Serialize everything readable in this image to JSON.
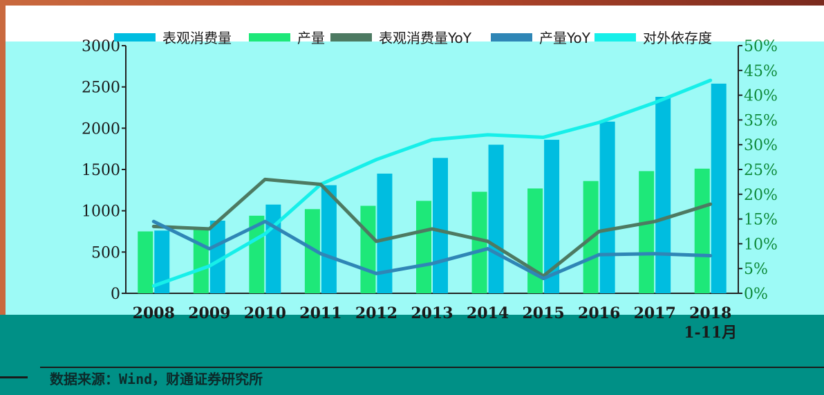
{
  "source_note": "数据来源：Wind，财通证券研究所",
  "colors": {
    "consumption_bar": "#00bde0",
    "production_bar": "#1ee879",
    "consumption_yoy_line": "#4d7a62",
    "production_yoy_line": "#2f86b6",
    "dependence_line": "#17efe9",
    "left_axis_text": "#1a1a1a",
    "right_axis_text": "#0e8a3a"
  },
  "chart_data": {
    "type": "bar",
    "categories": [
      "2008",
      "2009",
      "2010",
      "2011",
      "2012",
      "2013",
      "2014",
      "2015",
      "2016",
      "2017",
      "2018\n1-11月"
    ],
    "ylim": [
      0,
      3000
    ],
    "yticks": [
      0,
      500,
      1000,
      1500,
      2000,
      2500,
      3000
    ],
    "y2lim": [
      0,
      0.5
    ],
    "y2ticks": [
      "0%",
      "5%",
      "10%",
      "15%",
      "20%",
      "25%",
      "30%",
      "35%",
      "40%",
      "45%",
      "50%"
    ],
    "legend_position": "top",
    "series": [
      {
        "name": "表观消费量",
        "kind": "bar",
        "axis": "left",
        "values": [
          760,
          880,
          1075,
          1310,
          1450,
          1640,
          1800,
          1860,
          2080,
          2380,
          2540
        ]
      },
      {
        "name": "产量",
        "kind": "bar",
        "axis": "left",
        "values": [
          750,
          800,
          940,
          1020,
          1060,
          1120,
          1230,
          1270,
          1360,
          1480,
          1510
        ]
      },
      {
        "name": "表观消费量YoY",
        "kind": "line",
        "axis": "right",
        "values": [
          0.135,
          0.13,
          0.23,
          0.22,
          0.105,
          0.13,
          0.105,
          0.035,
          0.125,
          0.145,
          0.18
        ]
      },
      {
        "name": "产量YoY",
        "kind": "line",
        "axis": "right",
        "values": [
          0.145,
          0.09,
          0.145,
          0.08,
          0.04,
          0.06,
          0.09,
          0.03,
          0.078,
          0.08,
          0.076
        ]
      },
      {
        "name": "对外依存度",
        "kind": "line",
        "axis": "right",
        "values": [
          0.015,
          0.055,
          0.12,
          0.22,
          0.27,
          0.31,
          0.32,
          0.315,
          0.345,
          0.385,
          0.43
        ]
      }
    ]
  }
}
